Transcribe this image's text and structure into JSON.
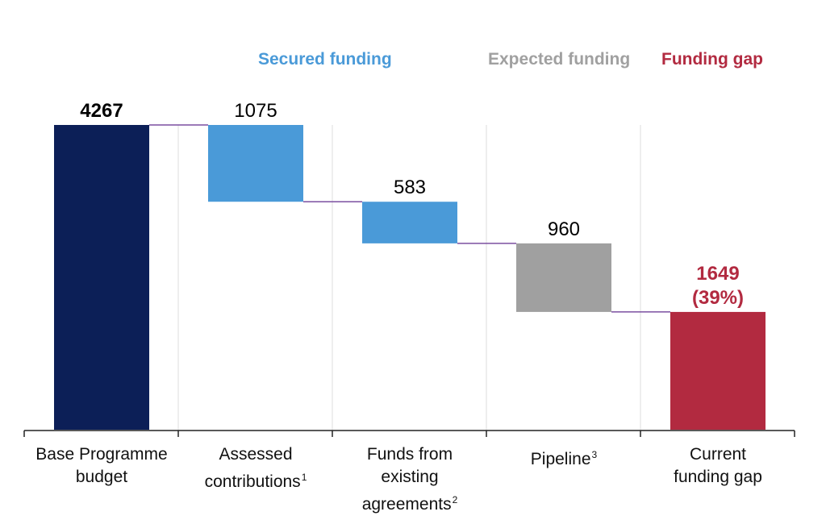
{
  "chart_data": {
    "type": "waterfall",
    "bars": [
      {
        "category_lines": [
          "Base Programme",
          "budget"
        ],
        "footnote": "",
        "value": 4267,
        "label_lines": [
          "4267"
        ],
        "start": 0,
        "end": 4267,
        "color": "#0c1f57",
        "label_color": "#000000",
        "label_bold": true
      },
      {
        "category_lines": [
          "Assessed",
          "contributions"
        ],
        "footnote": "1",
        "value": 1075,
        "label_lines": [
          "1075"
        ],
        "start": 3192,
        "end": 4267,
        "color": "#4a9ad8",
        "label_color": "#000000",
        "label_bold": false
      },
      {
        "category_lines": [
          "Funds from",
          "existing",
          "agreements"
        ],
        "footnote": "2",
        "value": 583,
        "label_lines": [
          "583"
        ],
        "start": 2609,
        "end": 3192,
        "color": "#4a9ad8",
        "label_color": "#000000",
        "label_bold": false
      },
      {
        "category_lines": [
          "Pipeline"
        ],
        "footnote": "3",
        "value": 960,
        "label_lines": [
          "960"
        ],
        "start": 1649,
        "end": 2609,
        "color": "#a0a0a0",
        "label_color": "#000000",
        "label_bold": false
      },
      {
        "category_lines": [
          "Current",
          "funding gap"
        ],
        "footnote": "",
        "value": 1649,
        "label_lines": [
          "1649",
          "(39%)"
        ],
        "start": 0,
        "end": 1649,
        "color": "#b22a40",
        "label_color": "#b22a40",
        "label_bold": true
      }
    ],
    "legend": [
      {
        "text": "Secured funding",
        "color": "#4a9ad8"
      },
      {
        "text": "Expected funding",
        "color": "#a0a0a0"
      },
      {
        "text": "Funding gap",
        "color": "#b22a40"
      }
    ],
    "ylim": [
      0,
      4267
    ],
    "connector_color": "#7b4fa0",
    "grid": "vertical separators"
  }
}
